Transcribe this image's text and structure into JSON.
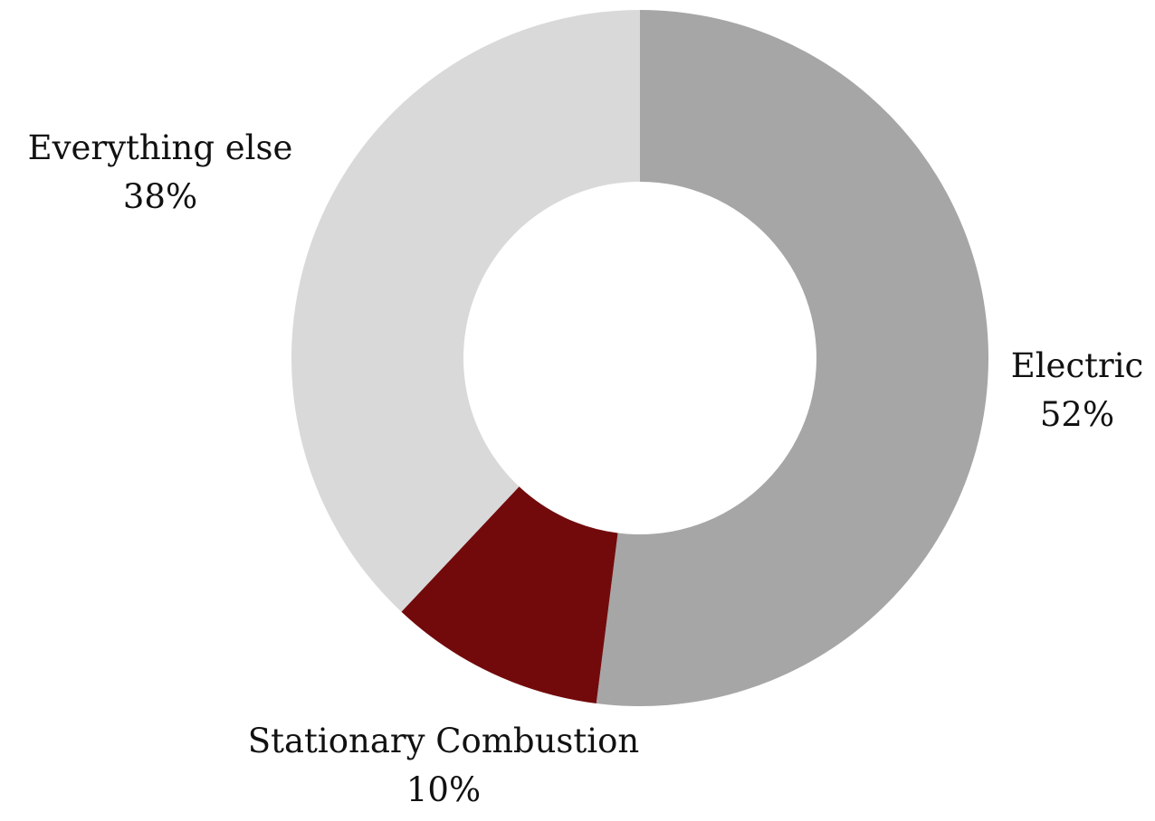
{
  "chart_data": {
    "type": "pie",
    "variant": "donut",
    "title": "",
    "slices": [
      {
        "label": "Electric",
        "value": 52,
        "value_label": "52%",
        "color": "#a6a6a6"
      },
      {
        "label": "Stationary Combustion",
        "value": 10,
        "value_label": "10%",
        "color": "#720a0c"
      },
      {
        "label": "Everything else",
        "value": 38,
        "value_label": "38%",
        "color": "#d9d9d9"
      }
    ],
    "start_angle": "12 o'clock",
    "direction": "clockwise",
    "legend": "none",
    "data_labels": "outside"
  }
}
